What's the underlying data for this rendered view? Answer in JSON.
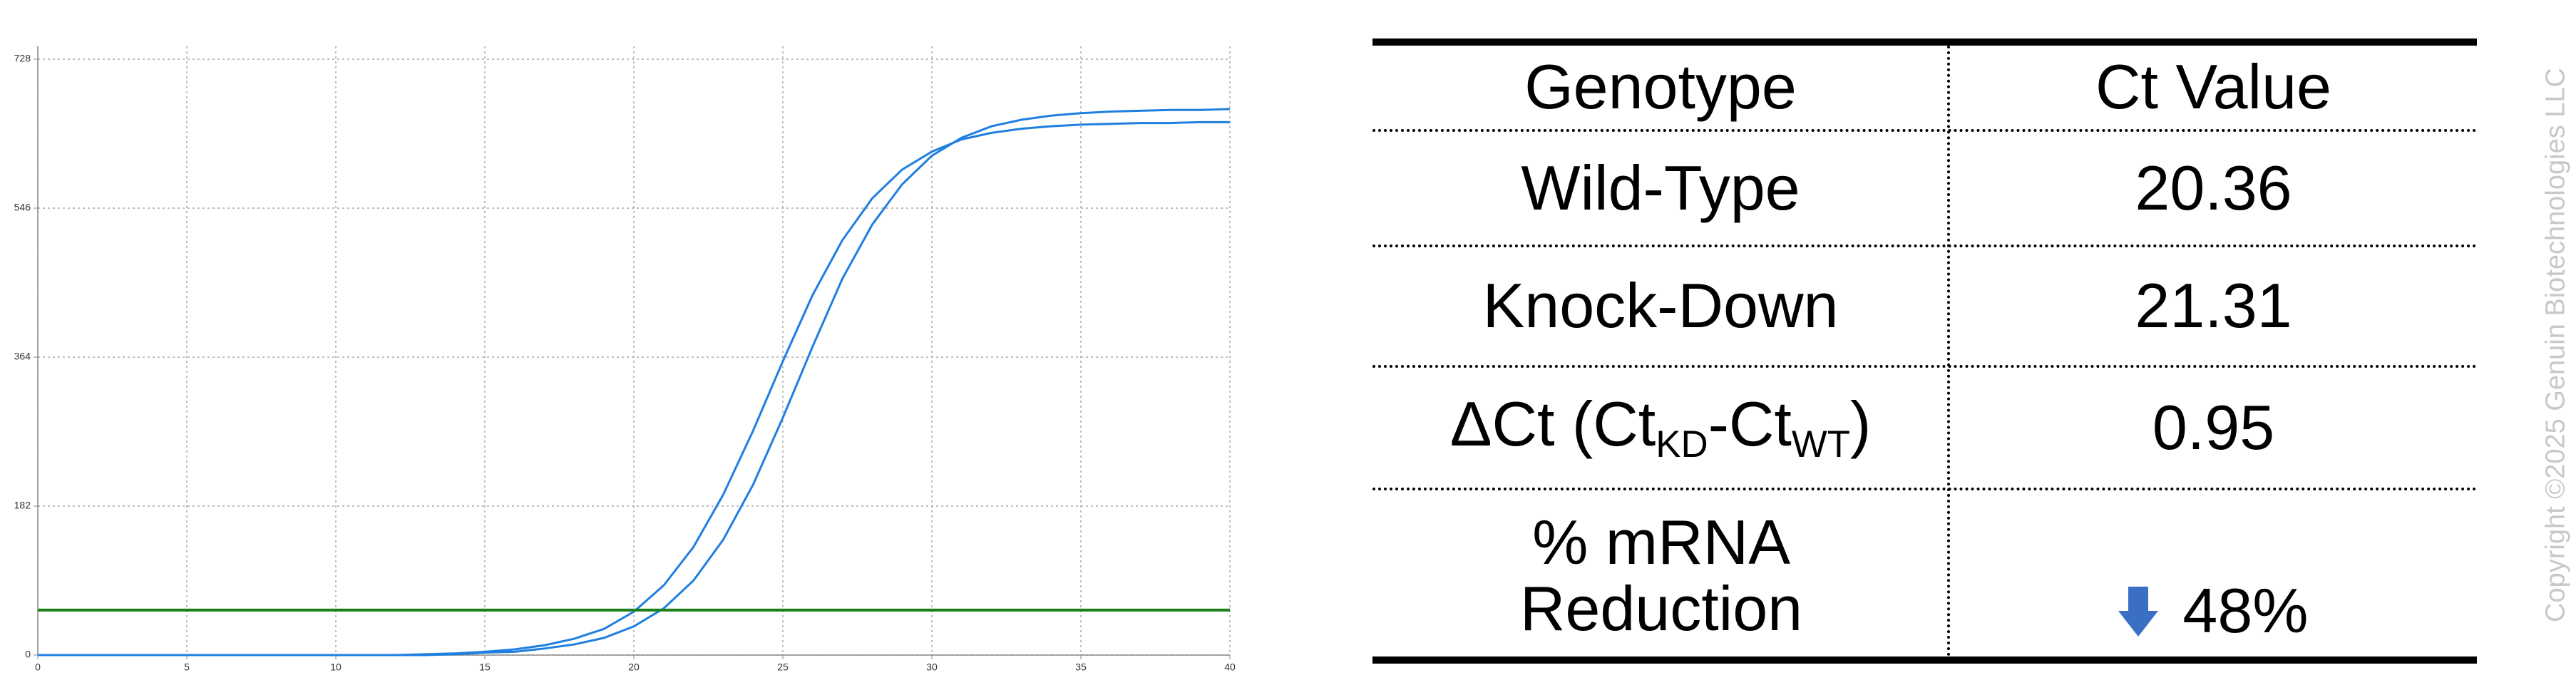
{
  "chart_data": {
    "type": "line",
    "x": [
      0,
      1,
      2,
      3,
      4,
      5,
      6,
      7,
      8,
      9,
      10,
      11,
      12,
      13,
      14,
      15,
      16,
      17,
      18,
      19,
      20,
      21,
      22,
      23,
      24,
      25,
      26,
      27,
      28,
      29,
      30,
      31,
      32,
      33,
      34,
      35,
      36,
      37,
      38,
      39,
      40
    ],
    "series": [
      {
        "color": "#1f7fe0",
        "values": [
          0,
          0,
          0,
          0,
          0,
          0,
          0,
          0,
          0,
          0,
          0,
          0,
          0,
          1,
          2,
          4,
          7,
          12,
          20,
          32,
          53,
          85,
          132,
          196,
          274,
          359,
          440,
          507,
          558,
          593,
          615,
          630,
          638,
          643,
          646,
          648,
          649,
          650,
          650,
          651,
          651
        ]
      },
      {
        "color": "#1f7fe0",
        "values": [
          0,
          0,
          0,
          0,
          0,
          0,
          0,
          0,
          0,
          0,
          0,
          0,
          0,
          0,
          1,
          3,
          4,
          8,
          13,
          21,
          35,
          57,
          91,
          141,
          208,
          290,
          377,
          460,
          526,
          575,
          610,
          632,
          646,
          654,
          659,
          662,
          664,
          665,
          666,
          666,
          667
        ]
      }
    ],
    "threshold": 55,
    "threshold_color": "#1a7f1a",
    "xlim": [
      0,
      40
    ],
    "xticks": [
      0,
      5,
      10,
      15,
      20,
      25,
      30,
      35,
      40
    ],
    "ylim": [
      0,
      728
    ],
    "yticks": [
      0,
      182,
      364,
      546,
      728
    ],
    "grid": true
  },
  "table": {
    "header": [
      "Genotype",
      "Ct Value"
    ],
    "rows": [
      [
        "Wild-Type",
        "20.36"
      ],
      [
        "Knock-Down",
        "21.31"
      ],
      [
        [
          "ΔCt (Ct",
          "KD",
          "-Ct",
          "WT",
          ")"
        ],
        "0.95"
      ],
      [
        "% mRNA Reduction",
        "48%"
      ]
    ]
  },
  "copyright": "Copyright ©2025 Genuin Biotechnologies LLC"
}
